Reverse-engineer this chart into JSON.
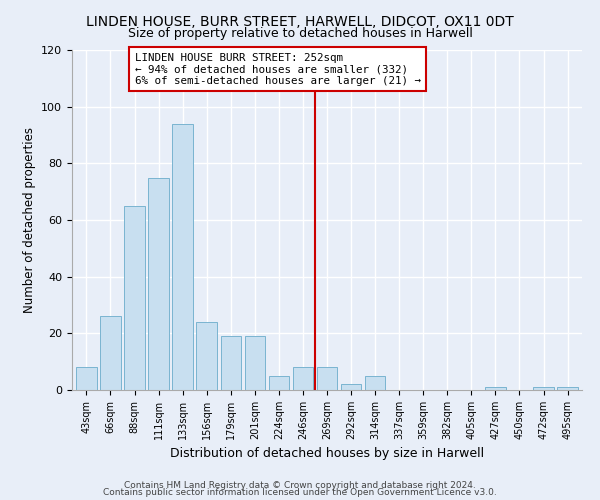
{
  "title": "LINDEN HOUSE, BURR STREET, HARWELL, DIDCOT, OX11 0DT",
  "subtitle": "Size of property relative to detached houses in Harwell",
  "xlabel": "Distribution of detached houses by size in Harwell",
  "ylabel": "Number of detached properties",
  "bar_labels": [
    "43sqm",
    "66sqm",
    "88sqm",
    "111sqm",
    "133sqm",
    "156sqm",
    "179sqm",
    "201sqm",
    "224sqm",
    "246sqm",
    "269sqm",
    "292sqm",
    "314sqm",
    "337sqm",
    "359sqm",
    "382sqm",
    "405sqm",
    "427sqm",
    "450sqm",
    "472sqm",
    "495sqm"
  ],
  "bar_values": [
    8,
    26,
    65,
    75,
    94,
    24,
    19,
    19,
    5,
    8,
    8,
    2,
    5,
    0,
    0,
    0,
    0,
    1,
    0,
    1,
    1
  ],
  "bar_color": "#c8dff0",
  "bar_edge_color": "#7ab4d0",
  "vline_x": 9.5,
  "vline_color": "#cc0000",
  "annotation_text": "LINDEN HOUSE BURR STREET: 252sqm\n← 94% of detached houses are smaller (332)\n6% of semi-detached houses are larger (21) →",
  "annotation_box_color": "#ffffff",
  "annotation_box_edge": "#cc0000",
  "ylim": [
    0,
    120
  ],
  "yticks": [
    0,
    20,
    40,
    60,
    80,
    100,
    120
  ],
  "footer1": "Contains HM Land Registry data © Crown copyright and database right 2024.",
  "footer2": "Contains public sector information licensed under the Open Government Licence v3.0.",
  "bg_color": "#e8eef8"
}
